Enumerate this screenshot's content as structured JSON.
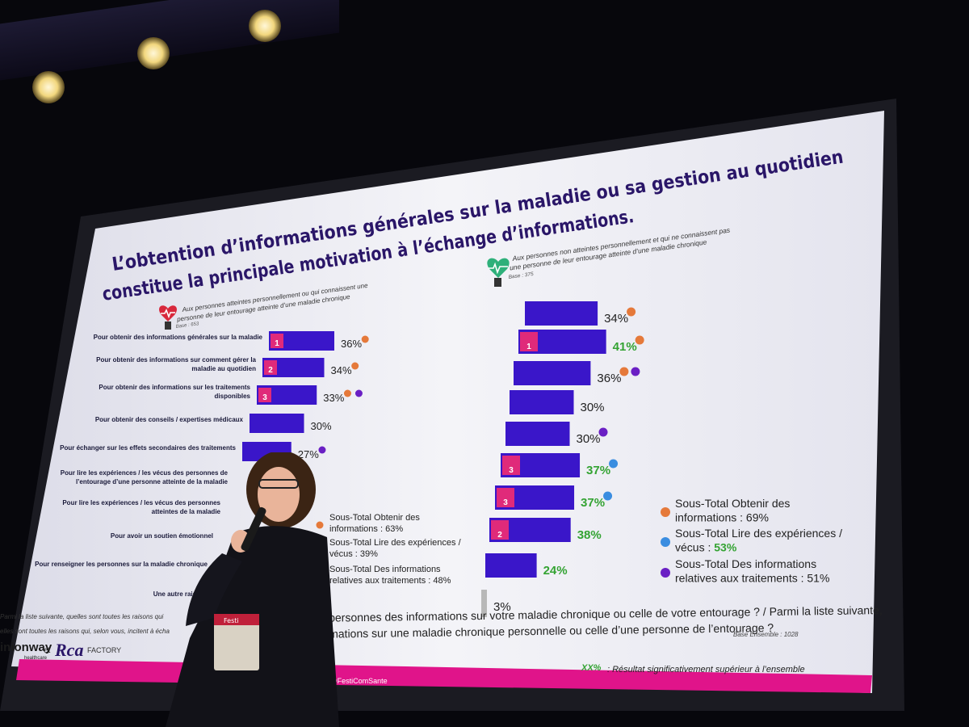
{
  "slide": {
    "title_line1": "L’obtention d’informations générales sur la maladie ou sa gestion au quotidien",
    "title_line2": "constitue la principale motivation à l’échange d’informations.",
    "question_line1": "Parmi la liste suivante, quelles sont toutes les raisons qui",
    "question_line1b": "tres personnes des informations sur votre maladie chronique ou celle de votre entourage ? / Parmi la liste suivante,",
    "question_line2": "elles sont toutes les raisons qui, selon vous, incitent à écha",
    "question_line2b": "informations sur une maladie chronique personnelle ou celle d’une personne de l’entourage ?",
    "base_total": "Base Ensemble : 1028",
    "significance_key": "XX%",
    "significance_note": ": Résultat significativement supérieur à l’ensemble",
    "footer_handles": "omSanté  @FestiComSante",
    "logo_left": "inionway",
    "logo_left_sub": "healthcare",
    "logo_et": "et",
    "logo_right": "Rca",
    "logo_right_sub": "FACTORY",
    "badge_text": "Festi"
  },
  "chart_data": [
    {
      "type": "bar",
      "orientation": "horizontal",
      "group_title": "Aux personnes atteintes personnellement ou qui connaissent une personne de leur entourage atteinte d’une maladie chronique",
      "base": "Base : 653",
      "categories": [
        "Pour obtenir des informations générales sur la maladie",
        "Pour obtenir des informations sur comment gérer la maladie au quotidien",
        "Pour obtenir des informations sur les traitements disponibles",
        "Pour obtenir des conseils / expertises médicaux",
        "Pour échanger sur les effets secondaires des traitements",
        "Pour lire les expériences / les vécus des personnes de l’entourage d’une personne atteinte de la maladie",
        "Pour lire les expériences / les vécus des personnes atteintes de la maladie",
        "Pour avoir un soutien émotionnel",
        "Pour renseigner les personnes sur la maladie chronique",
        "Une autre raison"
      ],
      "values": [
        36,
        34,
        33,
        30,
        27,
        null,
        null,
        null,
        null,
        null
      ],
      "value_labels": [
        "36%",
        "34%",
        "33%",
        "30%",
        "27%",
        "",
        "",
        "",
        "",
        ""
      ],
      "ranks": [
        "1",
        "2",
        "3",
        "",
        "",
        "",
        "",
        "",
        "",
        ""
      ],
      "markers": [
        [
          "orange"
        ],
        [
          "orange"
        ],
        [
          "orange",
          "purple"
        ],
        [],
        [
          "purple"
        ],
        [
          "blue"
        ],
        [],
        [],
        [],
        []
      ],
      "subtotals": [
        {
          "label": "Sous-Total Obtenir des informations : 63%",
          "marker": "orange"
        },
        {
          "label": "Sous-Total Lire des expériences / vécus : 39%",
          "marker": "blue"
        },
        {
          "label": "Sous-Total Des informations relatives aux traitements : 48%",
          "marker": "purple"
        }
      ],
      "subtotal_lines": [
        [
          "Sous-Total Obtenir des",
          "informations : 63%"
        ],
        [
          "Sous-Total Lire des expériences /",
          "vécus : 39%"
        ],
        [
          "Sous-Total Des informations",
          "relatives aux traitements : 48%"
        ]
      ]
    },
    {
      "type": "bar",
      "orientation": "horizontal",
      "group_title": "Aux personnes non atteintes personnellement et qui ne connaissent pas une personne de leur entourage atteinte d’une maladie chronique",
      "base": "Base : 375",
      "values": [
        34,
        41,
        36,
        30,
        30,
        37,
        37,
        38,
        24,
        3
      ],
      "value_labels": [
        "34%",
        "41%",
        "36%",
        "30%",
        "30%",
        "37%",
        "37%",
        "38%",
        "24%",
        "3%"
      ],
      "significant": [
        false,
        true,
        false,
        false,
        false,
        true,
        true,
        true,
        true,
        false
      ],
      "ranks": [
        "",
        "1",
        "",
        "",
        "",
        "3",
        "3",
        "2",
        "",
        ""
      ],
      "markers": [
        [
          "orange"
        ],
        [
          "orange"
        ],
        [
          "orange",
          "purple"
        ],
        [],
        [
          "purple"
        ],
        [
          "blue"
        ],
        [
          "blue"
        ],
        [],
        [],
        []
      ],
      "subtotals": [
        {
          "label": "Sous-Total Obtenir des informations : 69%",
          "marker": "orange"
        },
        {
          "label": "Sous-Total Lire des expériences / vécus : 53%",
          "marker": "blue"
        },
        {
          "label": "Sous-Total Des informations relatives aux traitements : 51%",
          "marker": "purple"
        }
      ],
      "subtotal_lines": [
        [
          "Sous-Total Obtenir des",
          "informations : 69%"
        ],
        [
          "Sous-Total Lire des expériences /",
          "vécus : ",
          "53%"
        ],
        [
          "Sous-Total Des informations",
          "relatives aux traitements : 51%"
        ]
      ]
    }
  ],
  "colors": {
    "bar": "#3a16c9",
    "rank_badge": "#e02a7a",
    "significant_text": "#34a333",
    "marker_orange": "#e5793a",
    "marker_purple": "#6a1fc4",
    "marker_blue": "#3a8de0",
    "other_bar": "#b8b8b8",
    "footer_band": "#e0148a",
    "slide_bg": "#f6f6fa"
  }
}
